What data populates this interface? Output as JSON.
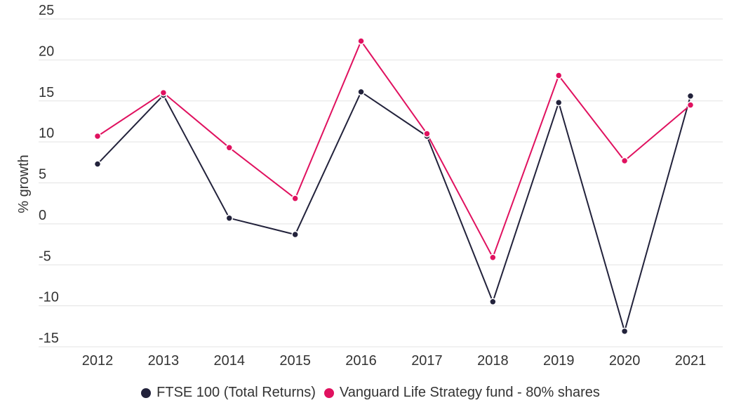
{
  "chart_data": {
    "type": "line",
    "title": "",
    "xlabel": "",
    "ylabel": "% growth",
    "ylim": [
      -15,
      25
    ],
    "yticks": [
      25,
      20,
      15,
      10,
      5,
      0,
      -5,
      -10,
      -15
    ],
    "categories": [
      "2012",
      "2013",
      "2014",
      "2015",
      "2016",
      "2017",
      "2018",
      "2019",
      "2020",
      "2021"
    ],
    "grid": true,
    "legend_position": "bottom",
    "series": [
      {
        "name": "FTSE 100 (Total Returns)",
        "color": "#22223b",
        "values": [
          7.3,
          15.7,
          0.7,
          -1.3,
          16.1,
          10.7,
          -9.5,
          14.8,
          -13.1,
          15.6
        ]
      },
      {
        "name": "Vanguard Life Strategy fund - 80% shares",
        "color": "#e0115f",
        "values": [
          10.7,
          16.0,
          9.3,
          3.1,
          22.3,
          11.0,
          -4.1,
          18.1,
          7.7,
          14.5
        ]
      }
    ]
  }
}
